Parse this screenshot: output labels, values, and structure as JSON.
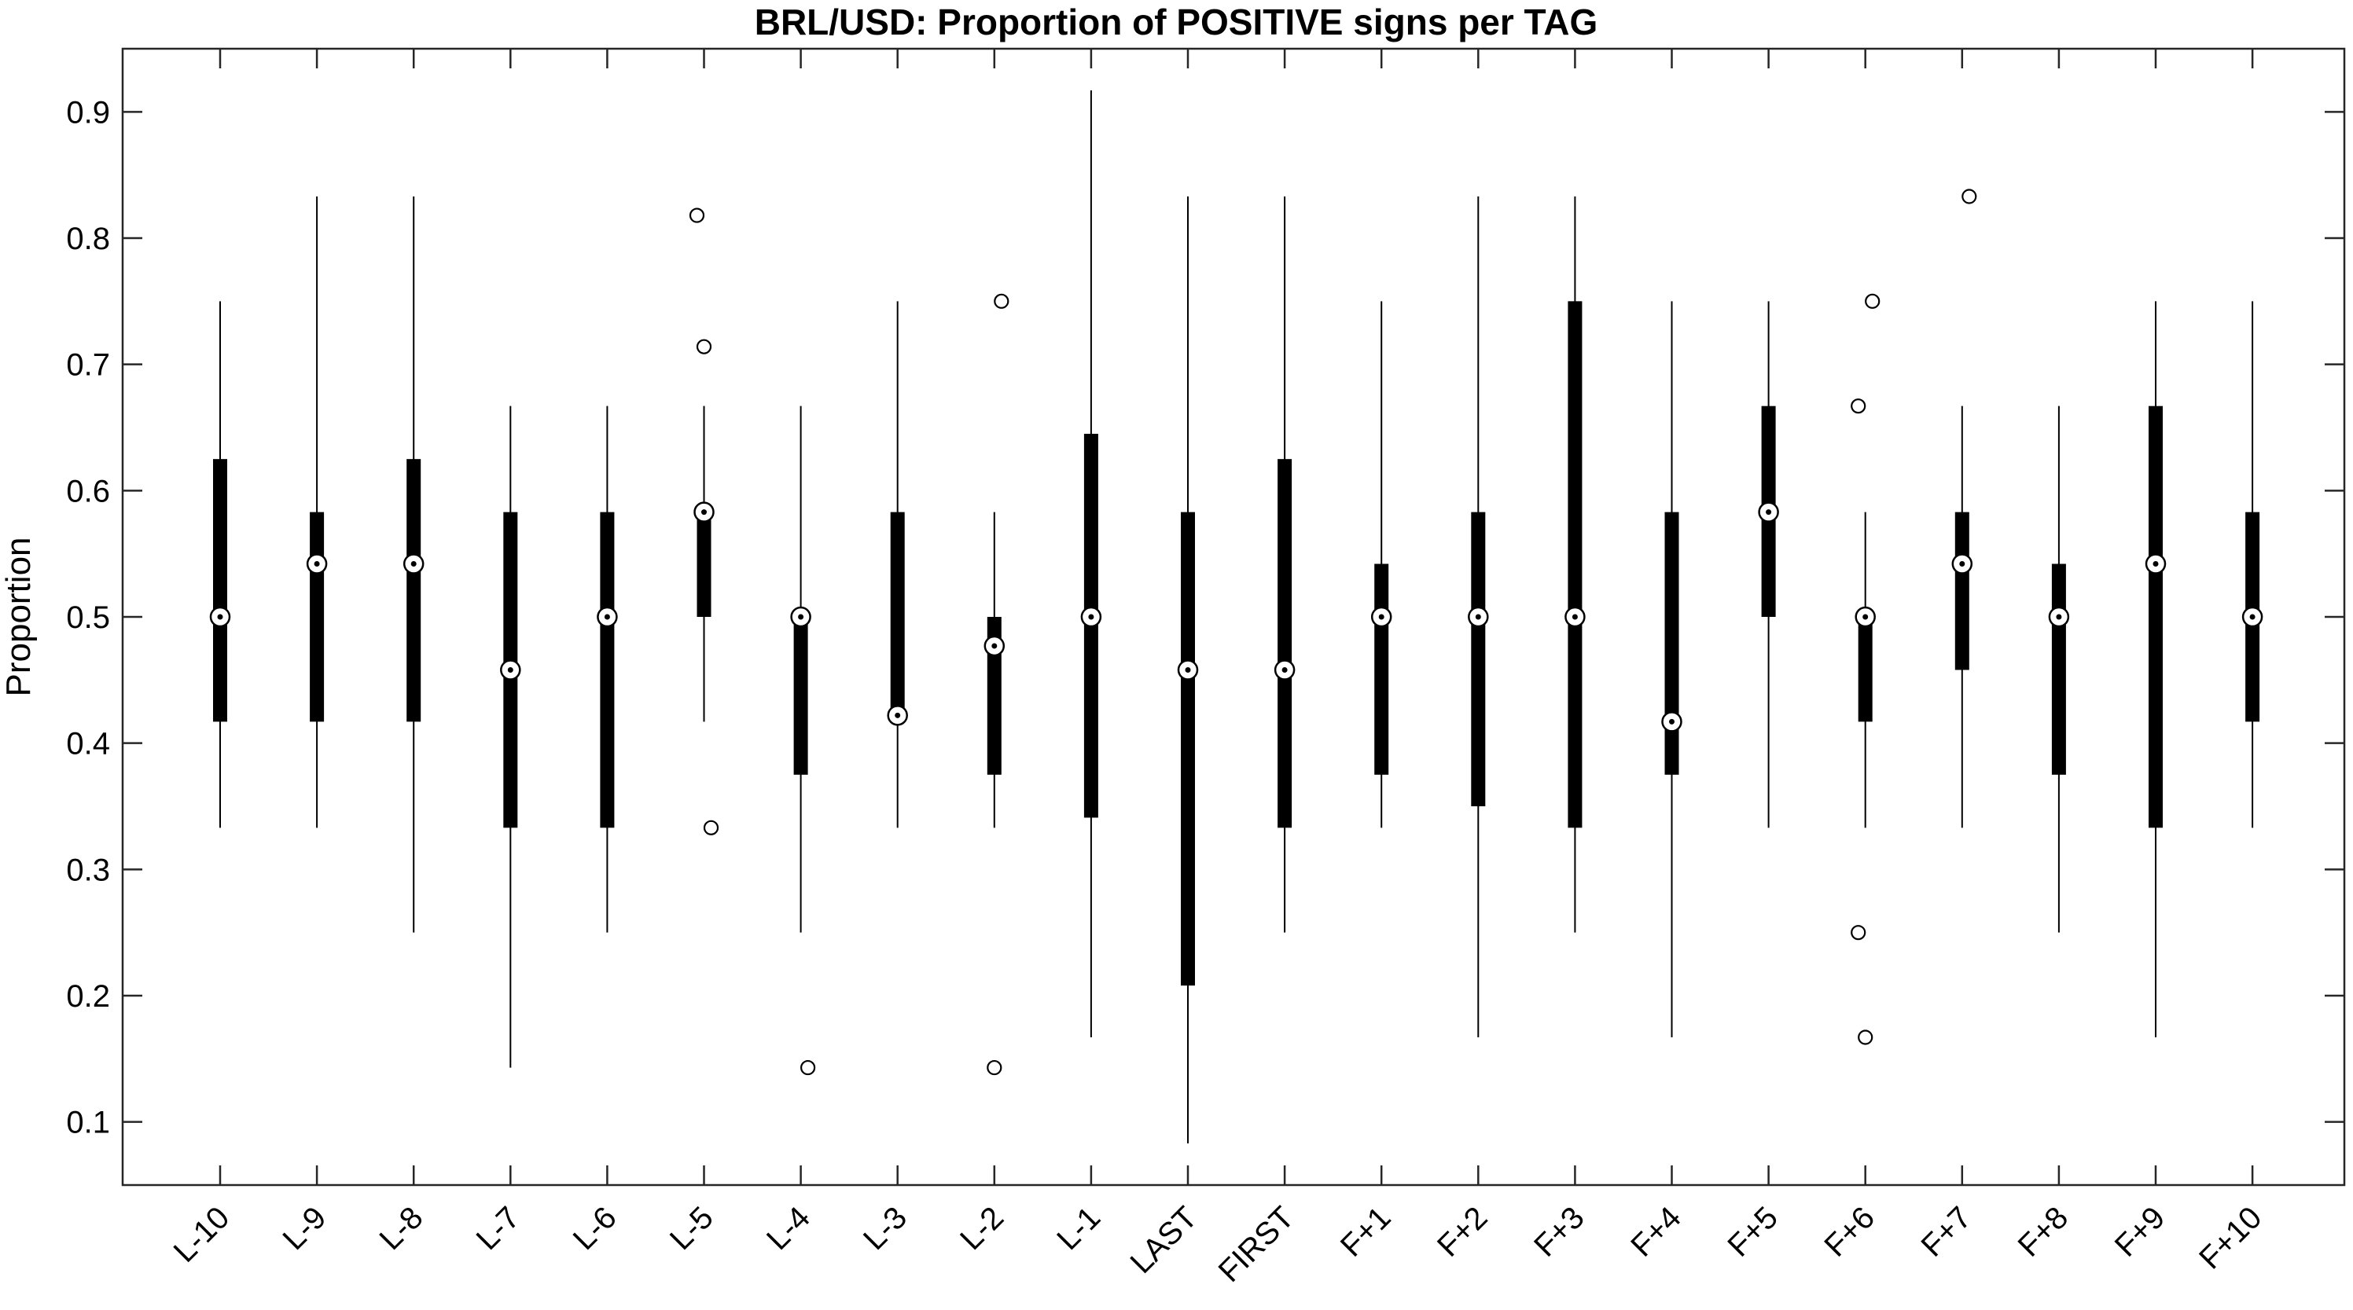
{
  "chart_data": {
    "type": "box",
    "title": "BRL/USD: Proportion of POSITIVE signs per TAG",
    "xlabel": "",
    "ylabel": "Proportion",
    "ylim": [
      0.05,
      0.95
    ],
    "yticks": [
      0.1,
      0.2,
      0.3,
      0.4,
      0.5,
      0.6,
      0.7,
      0.8,
      0.9
    ],
    "ytick_labels": [
      "0.1",
      "0.2",
      "0.3",
      "0.4",
      "0.5",
      "0.6",
      "0.7",
      "0.8",
      "0.9"
    ],
    "grid": false,
    "categories": [
      "L-10",
      "L-9",
      "L-8",
      "L-7",
      "L-6",
      "L-5",
      "L-4",
      "L-3",
      "L-2",
      "L-1",
      "LAST",
      "FIRST",
      "F+1",
      "F+2",
      "F+3",
      "F+4",
      "F+5",
      "F+6",
      "F+7",
      "F+8",
      "F+9",
      "F+10"
    ],
    "boxes": [
      {
        "whisker_low": 0.333,
        "q1": 0.417,
        "median": 0.5,
        "q3": 0.625,
        "whisker_high": 0.75,
        "outliers": []
      },
      {
        "whisker_low": 0.333,
        "q1": 0.417,
        "median": 0.542,
        "q3": 0.583,
        "whisker_high": 0.833,
        "outliers": []
      },
      {
        "whisker_low": 0.25,
        "q1": 0.417,
        "median": 0.542,
        "q3": 0.625,
        "whisker_high": 0.833,
        "outliers": []
      },
      {
        "whisker_low": 0.143,
        "q1": 0.333,
        "median": 0.458,
        "q3": 0.583,
        "whisker_high": 0.667,
        "outliers": []
      },
      {
        "whisker_low": 0.25,
        "q1": 0.333,
        "median": 0.5,
        "q3": 0.583,
        "whisker_high": 0.667,
        "outliers": []
      },
      {
        "whisker_low": 0.417,
        "q1": 0.5,
        "median": 0.583,
        "q3": 0.583,
        "whisker_high": 0.667,
        "outliers": [
          0.818,
          0.714,
          0.333
        ]
      },
      {
        "whisker_low": 0.25,
        "q1": 0.375,
        "median": 0.5,
        "q3": 0.5,
        "whisker_high": 0.667,
        "outliers": [
          0.143
        ]
      },
      {
        "whisker_low": 0.333,
        "q1": 0.422,
        "median": 0.422,
        "q3": 0.583,
        "whisker_high": 0.75,
        "outliers": []
      },
      {
        "whisker_low": 0.333,
        "q1": 0.375,
        "median": 0.477,
        "q3": 0.5,
        "whisker_high": 0.583,
        "outliers": [
          0.75,
          0.143
        ]
      },
      {
        "whisker_low": 0.167,
        "q1": 0.341,
        "median": 0.5,
        "q3": 0.645,
        "whisker_high": 0.917,
        "outliers": []
      },
      {
        "whisker_low": 0.083,
        "q1": 0.208,
        "median": 0.458,
        "q3": 0.583,
        "whisker_high": 0.833,
        "outliers": []
      },
      {
        "whisker_low": 0.25,
        "q1": 0.333,
        "median": 0.458,
        "q3": 0.625,
        "whisker_high": 0.833,
        "outliers": []
      },
      {
        "whisker_low": 0.333,
        "q1": 0.375,
        "median": 0.5,
        "q3": 0.542,
        "whisker_high": 0.75,
        "outliers": []
      },
      {
        "whisker_low": 0.167,
        "q1": 0.35,
        "median": 0.5,
        "q3": 0.583,
        "whisker_high": 0.833,
        "outliers": []
      },
      {
        "whisker_low": 0.25,
        "q1": 0.333,
        "median": 0.5,
        "q3": 0.75,
        "whisker_high": 0.833,
        "outliers": []
      },
      {
        "whisker_low": 0.167,
        "q1": 0.375,
        "median": 0.417,
        "q3": 0.583,
        "whisker_high": 0.75,
        "outliers": []
      },
      {
        "whisker_low": 0.333,
        "q1": 0.5,
        "median": 0.583,
        "q3": 0.667,
        "whisker_high": 0.75,
        "outliers": []
      },
      {
        "whisker_low": 0.333,
        "q1": 0.417,
        "median": 0.5,
        "q3": 0.5,
        "whisker_high": 0.583,
        "outliers": [
          0.75,
          0.667,
          0.25,
          0.167
        ]
      },
      {
        "whisker_low": 0.333,
        "q1": 0.458,
        "median": 0.542,
        "q3": 0.583,
        "whisker_high": 0.667,
        "outliers": [
          0.833
        ]
      },
      {
        "whisker_low": 0.25,
        "q1": 0.375,
        "median": 0.5,
        "q3": 0.542,
        "whisker_high": 0.667,
        "outliers": []
      },
      {
        "whisker_low": 0.167,
        "q1": 0.333,
        "median": 0.542,
        "q3": 0.667,
        "whisker_high": 0.75,
        "outliers": []
      },
      {
        "whisker_low": 0.333,
        "q1": 0.417,
        "median": 0.5,
        "q3": 0.583,
        "whisker_high": 0.75,
        "outliers": []
      }
    ]
  }
}
